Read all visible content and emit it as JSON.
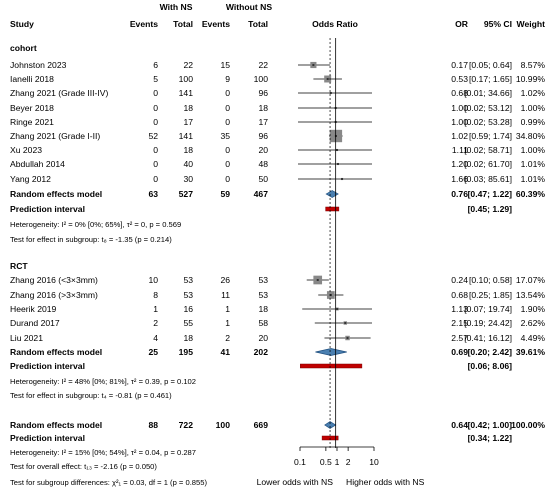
{
  "chart_data": {
    "type": "forest",
    "header": {
      "study": "Study",
      "group1": "With NS",
      "group2": "Without NS",
      "events1": "Events",
      "total1": "Total",
      "events2": "Events",
      "total2": "Total",
      "plot": "Odds Ratio",
      "or": "OR",
      "ci": "95% CI",
      "weight": "Weight"
    },
    "x_axis": {
      "scale": "log",
      "ticks": [
        0.1,
        0.5,
        1,
        2,
        10
      ],
      "tick_labels": [
        "0.1",
        "0.5",
        "1",
        "2",
        "10"
      ],
      "null_value": 1
    },
    "direction_labels": {
      "left": "Lower odds with NS",
      "right": "Higher odds with NS"
    },
    "subgroups": [
      {
        "label": "cohort",
        "studies": [
          {
            "name": "Johnston 2023",
            "e1": "6",
            "t1": "22",
            "e2": "15",
            "t2": "22",
            "or": 0.17,
            "lo": 0.05,
            "hi": 0.64,
            "or_text": "0.17",
            "ci_text": "[0.05; 0.64]",
            "weight": "8.57%",
            "w": 8.57
          },
          {
            "name": "Ianelli 2018",
            "e1": "5",
            "t1": "100",
            "e2": "9",
            "t2": "100",
            "or": 0.53,
            "lo": 0.17,
            "hi": 1.65,
            "or_text": "0.53",
            "ci_text": "[0.17; 1.65]",
            "weight": "10.99%",
            "w": 10.99
          },
          {
            "name": "Zhang 2021 (Grade III-IV)",
            "e1": "0",
            "t1": "141",
            "e2": "0",
            "t2": "96",
            "or": 0.68,
            "lo": 0.01,
            "hi": 34.66,
            "or_text": "0.68",
            "ci_text": "[0.01; 34.66]",
            "weight": "1.02%",
            "w": 1.02
          },
          {
            "name": "Beyer 2018",
            "e1": "0",
            "t1": "18",
            "e2": "0",
            "t2": "18",
            "or": 1.0,
            "lo": 0.02,
            "hi": 53.12,
            "or_text": "1.00",
            "ci_text": "[0.02; 53.12]",
            "weight": "1.00%",
            "w": 1.0
          },
          {
            "name": "Ringe 2021",
            "e1": "0",
            "t1": "17",
            "e2": "0",
            "t2": "17",
            "or": 1.0,
            "lo": 0.02,
            "hi": 53.28,
            "or_text": "1.00",
            "ci_text": "[0.02; 53.28]",
            "weight": "0.99%",
            "w": 0.99
          },
          {
            "name": "Zhang 2021 (Grade I-II)",
            "e1": "52",
            "t1": "141",
            "e2": "35",
            "t2": "96",
            "or": 1.02,
            "lo": 0.59,
            "hi": 1.74,
            "or_text": "1.02",
            "ci_text": "[0.59; 1.74]",
            "weight": "34.80%",
            "w": 34.8
          },
          {
            "name": "Xu 2023",
            "e1": "0",
            "t1": "18",
            "e2": "0",
            "t2": "20",
            "or": 1.11,
            "lo": 0.02,
            "hi": 58.71,
            "or_text": "1.11",
            "ci_text": "[0.02; 58.71]",
            "weight": "1.00%",
            "w": 1.0
          },
          {
            "name": "Abdullah 2014",
            "e1": "0",
            "t1": "40",
            "e2": "0",
            "t2": "48",
            "or": 1.2,
            "lo": 0.02,
            "hi": 61.7,
            "or_text": "1.20",
            "ci_text": "[0.02; 61.70]",
            "weight": "1.01%",
            "w": 1.01
          },
          {
            "name": "Yang 2012",
            "e1": "0",
            "t1": "30",
            "e2": "0",
            "t2": "50",
            "or": 1.66,
            "lo": 0.03,
            "hi": 85.61,
            "or_text": "1.66",
            "ci_text": "[0.03; 85.61]",
            "weight": "1.01%",
            "w": 1.01
          }
        ],
        "re": {
          "label": "Random effects model",
          "e1": "63",
          "t1": "527",
          "e2": "59",
          "t2": "467",
          "or": 0.76,
          "lo": 0.47,
          "hi": 1.22,
          "or_text": "0.76",
          "ci_text": "[0.47; 1.22]",
          "weight": "60.39%"
        },
        "pi": {
          "label": "Prediction interval",
          "lo": 0.45,
          "hi": 1.29,
          "ci_text": "[0.45; 1.29]"
        },
        "het": "Heterogeneity: I² = 0% [0%; 65%], τ² = 0, p = 0.569",
        "test": "Test for effect in subgroup: t₈ = -1.35 (p = 0.214)"
      },
      {
        "label": "RCT",
        "studies": [
          {
            "name": "Zhang 2016 (<3×3mm)",
            "e1": "10",
            "t1": "53",
            "e2": "26",
            "t2": "53",
            "or": 0.24,
            "lo": 0.1,
            "hi": 0.58,
            "or_text": "0.24",
            "ci_text": "[0.10; 0.58]",
            "weight": "17.07%",
            "w": 17.07
          },
          {
            "name": "Zhang 2016 (>3×3mm)",
            "e1": "8",
            "t1": "53",
            "e2": "11",
            "t2": "53",
            "or": 0.68,
            "lo": 0.25,
            "hi": 1.85,
            "or_text": "0.68",
            "ci_text": "[0.25; 1.85]",
            "weight": "13.54%",
            "w": 13.54
          },
          {
            "name": "Heerik 2019",
            "e1": "1",
            "t1": "16",
            "e2": "1",
            "t2": "18",
            "or": 1.13,
            "lo": 0.07,
            "hi": 19.74,
            "or_text": "1.13",
            "ci_text": "[0.07; 19.74]",
            "weight": "1.90%",
            "w": 1.9
          },
          {
            "name": "Durand 2017",
            "e1": "2",
            "t1": "55",
            "e2": "1",
            "t2": "58",
            "or": 2.15,
            "lo": 0.19,
            "hi": 24.42,
            "or_text": "2.15",
            "ci_text": "[0.19; 24.42]",
            "weight": "2.62%",
            "w": 2.62
          },
          {
            "name": "Liu 2021",
            "e1": "4",
            "t1": "18",
            "e2": "2",
            "t2": "20",
            "or": 2.57,
            "lo": 0.41,
            "hi": 16.12,
            "or_text": "2.57",
            "ci_text": "[0.41; 16.12]",
            "weight": "4.49%",
            "w": 4.49
          }
        ],
        "re": {
          "label": "Random effects model",
          "e1": "25",
          "t1": "195",
          "e2": "41",
          "t2": "202",
          "or": 0.69,
          "lo": 0.2,
          "hi": 2.42,
          "or_text": "0.69",
          "ci_text": "[0.20; 2.42]",
          "weight": "39.61%"
        },
        "pi": {
          "label": "Prediction interval",
          "lo": 0.06,
          "hi": 8.06,
          "ci_text": "[0.06; 8.06]"
        },
        "het": "Heterogeneity: I² = 48% [0%; 81%], τ² = 0.39, p = 0.102",
        "test": "Test for effect in subgroup: t₄ = -0.81 (p = 0.461)"
      }
    ],
    "overall": {
      "re": {
        "label": "Random effects model",
        "e1": "88",
        "t1": "722",
        "e2": "100",
        "t2": "669",
        "or": 0.64,
        "lo": 0.42,
        "hi": 1.0,
        "or_text": "0.64",
        "ci_text": "[0.42; 1.00]",
        "weight": "100.00%"
      },
      "pi": {
        "label": "Prediction interval",
        "lo": 0.34,
        "hi": 1.22,
        "ci_text": "[0.34; 1.22]"
      },
      "het": "Heterogeneity: I² = 15% [0%; 54%], τ² = 0.04, p = 0.287",
      "test_overall": "Test for overall effect: t₁₃ = -2.16 (p = 0.050)",
      "test_subgroups": "Test for subgroup differences: χ²₁ = 0.03, df = 1 (p = 0.855)"
    },
    "colors": {
      "box": "#888888",
      "diamond": "#4a7fb0",
      "diamond_stroke": "#1f4f7f",
      "prediction": "#c00000",
      "line": "#000000"
    }
  }
}
